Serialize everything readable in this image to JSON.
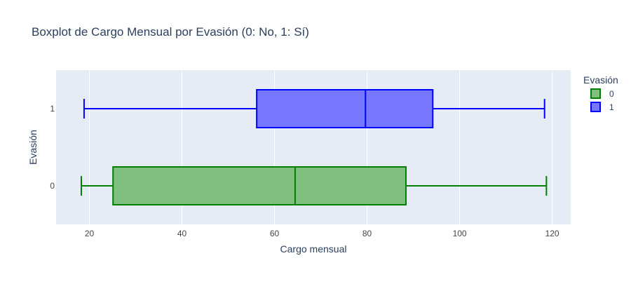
{
  "chart_data": {
    "type": "box",
    "orientation": "horizontal",
    "title": "Boxplot de Cargo Mensual por Evasión (0: No, 1: Sí)",
    "xlabel": "Cargo mensual",
    "ylabel": "Evasión",
    "xlim": [
      12.8,
      124.0
    ],
    "xticks": [
      20,
      40,
      60,
      80,
      100,
      120
    ],
    "categories": [
      "0",
      "1"
    ],
    "legend_title": "Evasión",
    "legend_position": "top-right, outside plot",
    "grid": true,
    "series": [
      {
        "name": "0",
        "category": "0",
        "color": "#008000",
        "fill": "#7fbf7f",
        "min": 18.25,
        "q1": 25.1,
        "median": 64.45,
        "q3": 88.4,
        "max": 118.75
      },
      {
        "name": "1",
        "category": "1",
        "color": "#0000ff",
        "fill": "#7878ff",
        "min": 18.85,
        "q1": 56.15,
        "median": 79.65,
        "q3": 94.2,
        "max": 118.35
      }
    ]
  },
  "colors": {
    "plot_background": "#e5ecf6",
    "grid": "#ffffff",
    "text": "#2a3f5f",
    "tick_text": "#444444"
  }
}
